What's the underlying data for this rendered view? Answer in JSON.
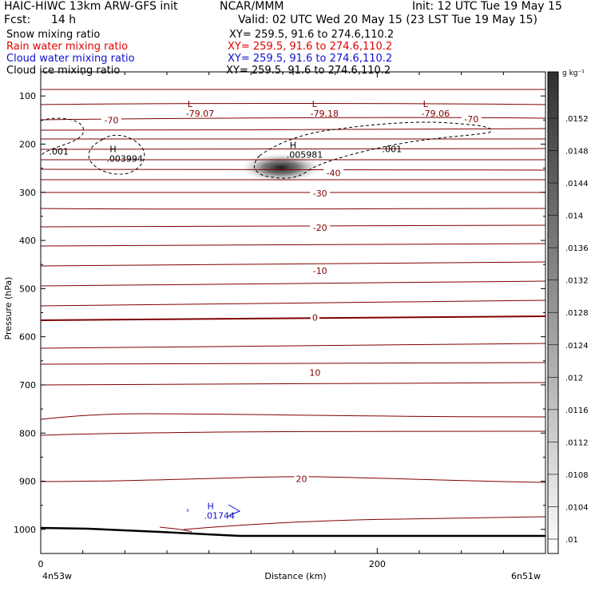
{
  "header": {
    "model": "HAIC-HIWC 13km ARW-GFS init",
    "org": "NCAR/MMM",
    "init": "Init: 12 UTC Tue 19 May 15",
    "fcst_label": "Fcst:",
    "fcst_value": "14 h",
    "valid": "Valid: 02 UTC Wed 20 May 15 (23 LST Tue 19 May 15)"
  },
  "fields": [
    {
      "name": "Snow mixing ratio",
      "xy": "XY= 259.5, 91.6 to 274.6,110.2",
      "color": "#000000"
    },
    {
      "name": "Rain water mixing ratio",
      "xy": "XY= 259.5, 91.6 to 274.6,110.2",
      "color": "#e00000"
    },
    {
      "name": "Cloud water mixing ratio",
      "xy": "XY= 259.5, 91.6 to 274.6,110.2",
      "color": "#1010d0"
    },
    {
      "name": "Cloud ice mixing ratio",
      "xy": "XY= 259.5, 91.6 to 274.6,110.2",
      "color": "#000000"
    }
  ],
  "chart_data": {
    "type": "cross-section contour",
    "xlabel": "Distance (km)",
    "ylabel": "Pressure (hPa)",
    "x_ticks": [
      0,
      200
    ],
    "x_range": [
      0,
      300
    ],
    "y_ticks": [
      100,
      200,
      300,
      400,
      500,
      600,
      700,
      800,
      900,
      1000
    ],
    "y_range": [
      50,
      1050
    ],
    "left_endpoint": "4n53w",
    "right_endpoint": "6n51w",
    "colorbar": {
      "unit": "g kg⁻¹",
      "labels": [
        ".0152",
        ".0148",
        ".0144",
        ".014",
        ".0136",
        ".0132",
        ".0128",
        ".0124",
        ".012",
        ".0116",
        ".0112",
        ".0108",
        ".0104",
        ".01"
      ]
    },
    "temperature_labels": [
      {
        "text": "-70",
        "x": 42,
        "p": 150
      },
      {
        "text": "-70",
        "x": 256,
        "p": 148
      },
      {
        "text": "-40",
        "x": 174,
        "p": 260
      },
      {
        "text": "-30",
        "x": 166,
        "p": 302
      },
      {
        "text": "-20",
        "x": 166,
        "p": 373
      },
      {
        "text": "-10",
        "x": 166,
        "p": 463
      },
      {
        "text": "0",
        "x": 163,
        "p": 560
      },
      {
        "text": "10",
        "x": 163,
        "p": 674
      },
      {
        "text": "20",
        "x": 155,
        "p": 895
      }
    ],
    "minima": [
      {
        "mark": "L",
        "value": "-79.07",
        "x": 91,
        "p": 80
      },
      {
        "mark": "L",
        "value": "-79.18",
        "x": 165,
        "p": 80
      },
      {
        "mark": "L",
        "value": "-79.06",
        "x": 231,
        "p": 80
      }
    ],
    "maxima": [
      {
        "mark": "H",
        "value": ".003994",
        "x": 41,
        "p": 223,
        "field": "cloud ice"
      },
      {
        "mark": "H",
        "value": ".005981",
        "x": 148,
        "p": 215,
        "field": "cloud ice"
      },
      {
        "mark": "H",
        "value": ".01744",
        "x": 99,
        "p": 965,
        "field": "cloud water"
      }
    ],
    "ice_contour_labels": [
      {
        "text": ".001",
        "x": 5,
        "p": 215
      },
      {
        "text": ".001",
        "x": 203,
        "p": 210
      }
    ]
  }
}
